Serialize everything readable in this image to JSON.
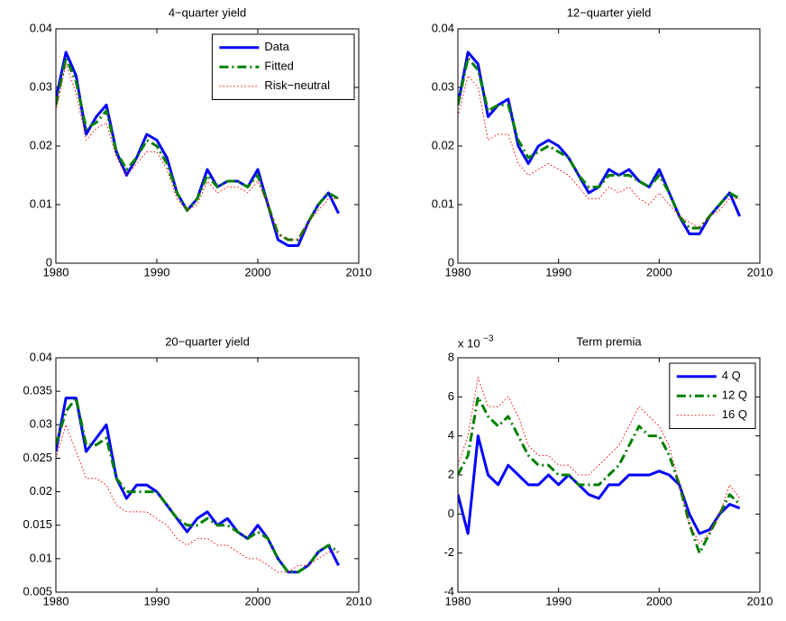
{
  "chart_data": [
    {
      "type": "line",
      "title": "4−quarter yield",
      "x": [
        1980,
        1981,
        1982,
        1983,
        1984,
        1985,
        1986,
        1987,
        1988,
        1989,
        1990,
        1991,
        1992,
        1993,
        1994,
        1995,
        1996,
        1997,
        1998,
        1999,
        2000,
        2001,
        2002,
        2003,
        2004,
        2005,
        2006,
        2007,
        2008
      ],
      "series": [
        {
          "name": "Data",
          "color": "#0000ff",
          "dash": "solid",
          "values": [
            0.028,
            0.036,
            0.032,
            0.022,
            0.025,
            0.027,
            0.019,
            0.015,
            0.018,
            0.022,
            0.021,
            0.018,
            0.012,
            0.009,
            0.011,
            0.016,
            0.013,
            0.014,
            0.014,
            0.013,
            0.016,
            0.01,
            0.004,
            0.003,
            0.003,
            0.007,
            0.01,
            0.012,
            0.0085
          ]
        },
        {
          "name": "Fitted",
          "color": "#008000",
          "dash": "dashdot",
          "values": [
            0.027,
            0.035,
            0.031,
            0.023,
            0.024,
            0.026,
            0.019,
            0.016,
            0.018,
            0.021,
            0.02,
            0.017,
            0.012,
            0.009,
            0.011,
            0.015,
            0.013,
            0.014,
            0.014,
            0.013,
            0.015,
            0.01,
            0.005,
            0.004,
            0.004,
            0.007,
            0.01,
            0.012,
            0.011
          ]
        },
        {
          "name": "Risk−neutral",
          "color": "#ff0000",
          "dash": "dotted",
          "values": [
            0.026,
            0.034,
            0.029,
            0.021,
            0.023,
            0.024,
            0.018,
            0.015,
            0.017,
            0.019,
            0.019,
            0.016,
            0.011,
            0.009,
            0.01,
            0.014,
            0.012,
            0.013,
            0.013,
            0.012,
            0.014,
            0.01,
            0.005,
            0.004,
            0.004,
            0.007,
            0.009,
            0.011,
            0.011
          ]
        }
      ],
      "xlim": [
        1980,
        2010
      ],
      "xticks": [
        1980,
        1990,
        2000,
        2010
      ],
      "ylim": [
        0,
        0.04
      ],
      "yticks": [
        0,
        0.01,
        0.02,
        0.03,
        0.04
      ],
      "legend": "upper right"
    },
    {
      "type": "line",
      "title": "12−quarter yield",
      "x": [
        1980,
        1981,
        1982,
        1983,
        1984,
        1985,
        1986,
        1987,
        1988,
        1989,
        1990,
        1991,
        1992,
        1993,
        1994,
        1995,
        1996,
        1997,
        1998,
        1999,
        2000,
        2001,
        2002,
        2003,
        2004,
        2005,
        2006,
        2007,
        2008
      ],
      "series": [
        {
          "color": "#0000ff",
          "dash": "solid",
          "values": [
            0.027,
            0.036,
            0.034,
            0.025,
            0.027,
            0.028,
            0.02,
            0.017,
            0.02,
            0.021,
            0.02,
            0.018,
            0.015,
            0.012,
            0.013,
            0.016,
            0.015,
            0.016,
            0.014,
            0.013,
            0.016,
            0.012,
            0.008,
            0.005,
            0.005,
            0.008,
            0.01,
            0.012,
            0.008
          ]
        },
        {
          "color": "#008000",
          "dash": "dashdot",
          "values": [
            0.027,
            0.035,
            0.033,
            0.026,
            0.027,
            0.027,
            0.021,
            0.018,
            0.019,
            0.02,
            0.019,
            0.018,
            0.015,
            0.013,
            0.013,
            0.015,
            0.015,
            0.015,
            0.014,
            0.013,
            0.015,
            0.012,
            0.008,
            0.006,
            0.006,
            0.008,
            0.01,
            0.012,
            0.011
          ]
        },
        {
          "color": "#ff0000",
          "dash": "dotted",
          "values": [
            0.025,
            0.032,
            0.03,
            0.021,
            0.022,
            0.022,
            0.017,
            0.015,
            0.016,
            0.017,
            0.016,
            0.015,
            0.013,
            0.011,
            0.011,
            0.013,
            0.012,
            0.013,
            0.011,
            0.01,
            0.012,
            0.01,
            0.008,
            0.007,
            0.006,
            0.008,
            0.009,
            0.011,
            0.011
          ]
        }
      ],
      "xlim": [
        1980,
        2010
      ],
      "xticks": [
        1980,
        1990,
        2000,
        2010
      ],
      "ylim": [
        0,
        0.04
      ],
      "yticks": [
        0,
        0.01,
        0.02,
        0.03,
        0.04
      ]
    },
    {
      "type": "line",
      "title": "20−quarter yield",
      "x": [
        1980,
        1981,
        1982,
        1983,
        1984,
        1985,
        1986,
        1987,
        1988,
        1989,
        1990,
        1991,
        1992,
        1993,
        1994,
        1995,
        1996,
        1997,
        1998,
        1999,
        2000,
        2001,
        2002,
        2003,
        2004,
        2005,
        2006,
        2007,
        2008
      ],
      "series": [
        {
          "color": "#0000ff",
          "dash": "solid",
          "values": [
            0.026,
            0.034,
            0.034,
            0.026,
            0.028,
            0.03,
            0.022,
            0.019,
            0.021,
            0.021,
            0.02,
            0.018,
            0.016,
            0.014,
            0.016,
            0.017,
            0.015,
            0.016,
            0.014,
            0.013,
            0.015,
            0.013,
            0.01,
            0.008,
            0.008,
            0.009,
            0.011,
            0.012,
            0.009
          ]
        },
        {
          "color": "#008000",
          "dash": "dashdot",
          "values": [
            0.027,
            0.032,
            0.034,
            0.027,
            0.027,
            0.028,
            0.022,
            0.02,
            0.02,
            0.02,
            0.02,
            0.018,
            0.016,
            0.015,
            0.015,
            0.016,
            0.015,
            0.015,
            0.014,
            0.013,
            0.014,
            0.013,
            0.01,
            0.008,
            0.008,
            0.009,
            0.011,
            0.012,
            0.011
          ]
        },
        {
          "color": "#ff0000",
          "dash": "dotted",
          "values": [
            0.025,
            0.03,
            0.026,
            0.022,
            0.022,
            0.021,
            0.018,
            0.017,
            0.017,
            0.017,
            0.016,
            0.015,
            0.013,
            0.012,
            0.013,
            0.013,
            0.012,
            0.012,
            0.011,
            0.01,
            0.01,
            0.009,
            0.008,
            0.008,
            0.009,
            0.009,
            0.01,
            0.011,
            0.011
          ]
        }
      ],
      "xlim": [
        1980,
        2010
      ],
      "xticks": [
        1980,
        1990,
        2000,
        2010
      ],
      "ylim": [
        0.005,
        0.04
      ],
      "yticks": [
        0.005,
        0.01,
        0.015,
        0.02,
        0.025,
        0.03,
        0.035,
        0.04
      ]
    },
    {
      "type": "line",
      "title": "Term premia",
      "y_scale_label": "x 10",
      "y_scale_exponent": "−3",
      "x": [
        1980,
        1981,
        1982,
        1983,
        1984,
        1985,
        1986,
        1987,
        1988,
        1989,
        1990,
        1991,
        1992,
        1993,
        1994,
        1995,
        1996,
        1997,
        1998,
        1999,
        2000,
        2001,
        2002,
        2003,
        2004,
        2005,
        2006,
        2007,
        2008
      ],
      "series": [
        {
          "name": "4 Q",
          "color": "#0000ff",
          "dash": "solid",
          "values": [
            1,
            -1,
            4,
            2,
            1.5,
            2.5,
            2,
            1.5,
            1.5,
            2,
            1.5,
            2,
            1.5,
            1,
            0.8,
            1.5,
            1.5,
            2,
            2,
            2,
            2.2,
            2,
            1.5,
            0,
            -1,
            -0.8,
            0,
            0.5,
            0.3
          ]
        },
        {
          "name": "12 Q",
          "color": "#008000",
          "dash": "dashdot",
          "values": [
            2,
            3,
            6,
            5,
            4.5,
            5,
            4,
            3,
            2.5,
            2.5,
            2,
            2,
            1.5,
            1.5,
            1.5,
            2,
            2.5,
            3.5,
            4.5,
            4,
            4,
            3,
            1.5,
            -0.5,
            -2,
            -1,
            0,
            1,
            0.5
          ]
        },
        {
          "name": "16 Q",
          "color": "#ff0000",
          "dash": "dotted",
          "values": [
            2.5,
            4,
            7,
            5.5,
            5.5,
            6,
            5,
            3.5,
            3,
            3,
            2.5,
            2.5,
            2,
            2,
            2.5,
            3,
            3.5,
            4.5,
            5.5,
            5,
            4.5,
            3.5,
            1.5,
            -0.5,
            -1.5,
            -1,
            0,
            1.5,
            0.8
          ]
        }
      ],
      "xlim": [
        1980,
        2010
      ],
      "xticks": [
        1980,
        1990,
        2000,
        2010
      ],
      "ylim": [
        -4,
        8
      ],
      "yticks": [
        -4,
        -2,
        0,
        2,
        4,
        6,
        8
      ],
      "legend": "upper right"
    }
  ]
}
